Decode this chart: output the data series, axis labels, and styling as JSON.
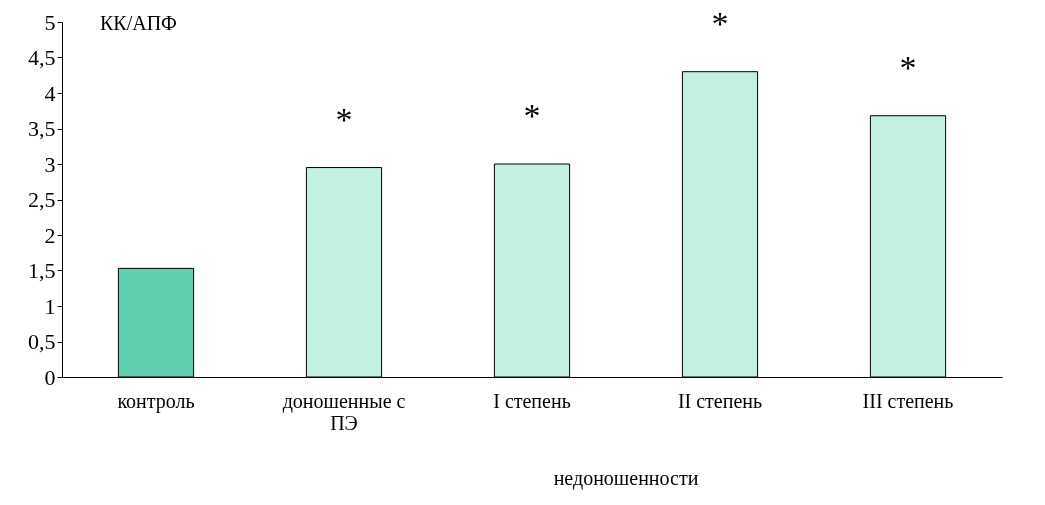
{
  "chart_data": {
    "type": "bar",
    "ylabel": "КК/АПФ",
    "categories": [
      "контроль",
      "доношенные с ПЭ",
      "I степень",
      "II степень",
      "III степень"
    ],
    "values": [
      1.53,
      2.95,
      3.0,
      4.3,
      3.68
    ],
    "colors": [
      "#5fcfb0",
      "#c4f0e3",
      "#c4f0e3",
      "#c4f0e3",
      "#c4f0e3"
    ],
    "ylim": [
      0,
      5
    ],
    "yticks": [
      0,
      {
        "value": 0.5,
        "label": "0,5"
      },
      1,
      {
        "value": 1.5,
        "label": "1,5"
      },
      2,
      {
        "value": 2.5,
        "label": "2,5"
      },
      3,
      {
        "value": 3.5,
        "label": "3,5"
      },
      4,
      {
        "value": 4.5,
        "label": "4,5"
      },
      5
    ],
    "grid": false,
    "annotations": [
      "*",
      "*",
      "*",
      "*",
      "недоношенности"
    ]
  }
}
